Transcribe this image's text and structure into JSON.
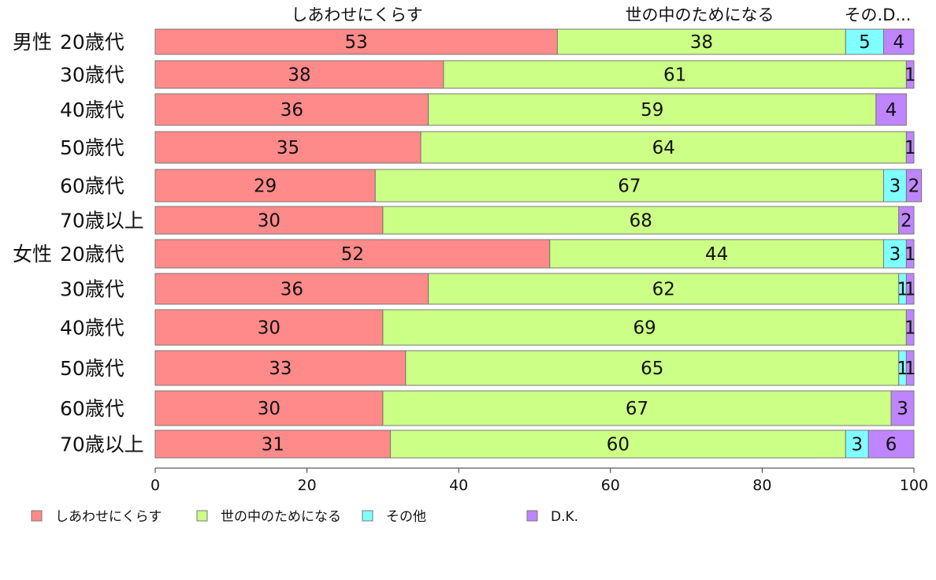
{
  "chart_data": {
    "type": "bar",
    "orientation": "horizontal",
    "stacked": true,
    "groups": [
      "男性",
      "女性"
    ],
    "categories": [
      "20歳代",
      "30歳代",
      "40歳代",
      "50歳代",
      "60歳代",
      "70歳以上",
      "20歳代",
      "30歳代",
      "40歳代",
      "50歳代",
      "60歳代",
      "70歳以上"
    ],
    "series": [
      {
        "name": "しあわせにくらす",
        "values": [
          53,
          38,
          36,
          35,
          29,
          30,
          52,
          36,
          30,
          33,
          30,
          31
        ],
        "color": "#ff8a8a"
      },
      {
        "name": "世の中のためになる",
        "values": [
          38,
          61,
          59,
          64,
          67,
          68,
          44,
          62,
          69,
          65,
          67,
          60
        ],
        "color": "#ccff85"
      },
      {
        "name": "その他",
        "values": [
          5,
          0,
          0,
          0,
          3,
          0,
          3,
          1,
          0,
          1,
          0,
          3
        ],
        "color": "#80ffff"
      },
      {
        "name": "D.K.",
        "values": [
          4,
          1,
          4,
          1,
          2,
          2,
          1,
          1,
          1,
          1,
          3,
          6
        ],
        "color": "#bf85ff"
      }
    ],
    "segment_labels": [
      [
        "53",
        "38",
        "5",
        "4"
      ],
      [
        "38",
        "61",
        "",
        "1"
      ],
      [
        "36",
        "59",
        "",
        "4"
      ],
      [
        "35",
        "64",
        "",
        "1"
      ],
      [
        "29",
        "67",
        "3",
        "2"
      ],
      [
        "30",
        "68",
        "",
        "2"
      ],
      [
        "52",
        "44",
        "3",
        "1"
      ],
      [
        "36",
        "62",
        "1",
        "1"
      ],
      [
        "30",
        "69",
        "",
        "1"
      ],
      [
        "33",
        "65",
        "1",
        "1"
      ],
      [
        "30",
        "67",
        "",
        "3"
      ],
      [
        "31",
        "60",
        "3",
        "6"
      ]
    ],
    "top_labels": [
      "しあわせにくらす",
      "世の中のためになる",
      "その.D..."
    ],
    "x_ticks": [
      "0",
      "20",
      "40",
      "60",
      "80",
      "100"
    ],
    "xlim": [
      0,
      100
    ],
    "grid": false,
    "legend_position": "bottom"
  }
}
